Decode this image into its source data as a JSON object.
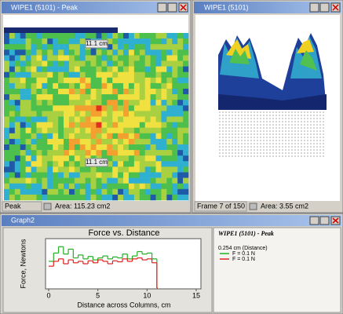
{
  "windows": [
    {
      "title": "WIPE1 (5101) - Peak",
      "labels": [
        "11.1 cm",
        "11.1 cm"
      ],
      "status": [
        "Peak",
        "Area: 115.23 cm2"
      ]
    },
    {
      "title": "WIPE1 (5101)",
      "status": [
        "Frame 7 of 150",
        "Area: 3.55 cm2"
      ]
    },
    {
      "title": "Graph2",
      "legend_title": "WIPE1 (5101) - Peak",
      "legend_subtitle": "0.254 cm (Distance)"
    }
  ],
  "chart_data": {
    "type": "line",
    "title": "Force vs. Distance",
    "x_label": "Distance across Columns, cm",
    "y_label": "Force, Newtons",
    "x": [
      0,
      0.5,
      1,
      1.5,
      2,
      2.5,
      3,
      3.5,
      4,
      4.5,
      5,
      5.5,
      6,
      6.5,
      7,
      7.5,
      8,
      8.5,
      9,
      9.5,
      10,
      10.5,
      11
    ],
    "series": [
      {
        "name": "F = 0.1 N",
        "color": "#22b022",
        "values": [
          0.55,
          0.72,
          0.85,
          0.7,
          0.8,
          0.62,
          0.68,
          0.6,
          0.65,
          0.58,
          0.62,
          0.66,
          0.6,
          0.64,
          0.62,
          0.7,
          0.6,
          0.66,
          0.75,
          0.7,
          0.72,
          0.6,
          0
        ]
      },
      {
        "name": "F = 0.1 N",
        "color": "#e02020",
        "values": [
          0.45,
          0.55,
          0.6,
          0.5,
          0.58,
          0.52,
          0.55,
          0.5,
          0.56,
          0.52,
          0.58,
          0.55,
          0.5,
          0.56,
          0.54,
          0.6,
          0.55,
          0.6,
          0.62,
          0.58,
          0.6,
          0.52,
          0
        ]
      }
    ],
    "xlim": [
      0,
      15
    ],
    "xticks": [
      0,
      5,
      10,
      15
    ],
    "ylim": [
      0,
      1
    ]
  }
}
